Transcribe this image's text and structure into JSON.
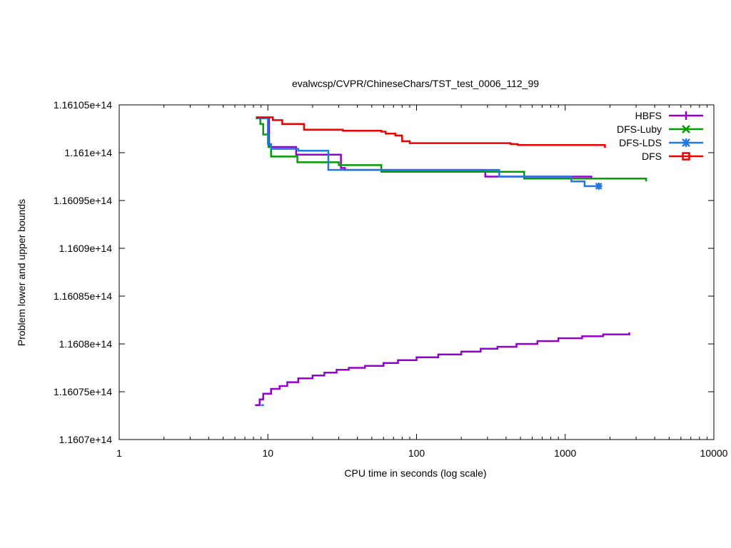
{
  "chart_data": {
    "type": "line",
    "title": "evalwcsp/CVPR/ChineseChars/TST_test_0006_112_99",
    "xlabel": "CPU time in seconds (log scale)",
    "ylabel": "Problem lower and upper bounds",
    "xscale": "log",
    "xlim": [
      1,
      10000
    ],
    "ylim": [
      116070000000000,
      116105000000000
    ],
    "xticks": [
      {
        "value": 1,
        "label": "1"
      },
      {
        "value": 10,
        "label": "10"
      },
      {
        "value": 100,
        "label": "100"
      },
      {
        "value": 1000,
        "label": "1000"
      },
      {
        "value": 10000,
        "label": "10000"
      }
    ],
    "yticks": [
      {
        "value": 116070000000000,
        "label": "1.1607e+14"
      },
      {
        "value": 116075000000000,
        "label": "1.16075e+14"
      },
      {
        "value": 116080000000000,
        "label": "1.1608e+14"
      },
      {
        "value": 116085000000000,
        "label": "1.16085e+14"
      },
      {
        "value": 116090000000000,
        "label": "1.1609e+14"
      },
      {
        "value": 116095000000000,
        "label": "1.16095e+14"
      },
      {
        "value": 116100000000000,
        "label": "1.161e+14"
      },
      {
        "value": 116105000000000,
        "label": "1.16105e+14"
      }
    ],
    "legend_position": "top-right",
    "series": [
      {
        "name": "HBFS",
        "color": "#9400d3",
        "marker": "plus",
        "upper": [
          [
            8.4,
            116103600000000
          ],
          [
            10.2,
            116103600000000
          ],
          [
            10.2,
            116100600000000
          ],
          [
            15.5,
            116100600000000
          ],
          [
            15.5,
            116099800000000
          ],
          [
            31,
            116099800000000
          ],
          [
            31,
            116098400000000
          ],
          [
            33,
            116098400000000
          ],
          [
            33,
            116098200000000
          ],
          [
            290,
            116098200000000
          ],
          [
            290,
            116097500000000
          ],
          [
            1500,
            116097500000000
          ],
          [
            1500,
            116097300000000
          ],
          [
            1600,
            116097300000000
          ]
        ],
        "lower": [
          [
            8.2,
            116073600000000
          ],
          [
            8.8,
            116073600000000
          ],
          [
            8.8,
            116074200000000
          ],
          [
            9.3,
            116074200000000
          ],
          [
            9.3,
            116074800000000
          ],
          [
            10.5,
            116074800000000
          ],
          [
            10.5,
            116075300000000
          ],
          [
            12,
            116075300000000
          ],
          [
            12,
            116075600000000
          ],
          [
            13.5,
            116075600000000
          ],
          [
            13.5,
            116076000000000
          ],
          [
            16,
            116076000000000
          ],
          [
            16,
            116076400000000
          ],
          [
            20,
            116076400000000
          ],
          [
            20,
            116076700000000
          ],
          [
            24,
            116076700000000
          ],
          [
            24,
            116077000000000
          ],
          [
            29,
            116077000000000
          ],
          [
            29,
            116077300000000
          ],
          [
            35,
            116077300000000
          ],
          [
            35,
            116077500000000
          ],
          [
            45,
            116077500000000
          ],
          [
            45,
            116077700000000
          ],
          [
            60,
            116077700000000
          ],
          [
            60,
            116078000000000
          ],
          [
            75,
            116078000000000
          ],
          [
            75,
            116078300000000
          ],
          [
            100,
            116078300000000
          ],
          [
            100,
            116078600000000
          ],
          [
            140,
            116078600000000
          ],
          [
            140,
            116078900000000
          ],
          [
            200,
            116078900000000
          ],
          [
            200,
            116079200000000
          ],
          [
            270,
            116079200000000
          ],
          [
            270,
            116079500000000
          ],
          [
            350,
            116079500000000
          ],
          [
            350,
            116079700000000
          ],
          [
            470,
            116079700000000
          ],
          [
            470,
            116080000000000
          ],
          [
            650,
            116080000000000
          ],
          [
            650,
            116080300000000
          ],
          [
            900,
            116080300000000
          ],
          [
            900,
            116080600000000
          ],
          [
            1300,
            116080600000000
          ],
          [
            1300,
            116080800000000
          ],
          [
            1800,
            116080800000000
          ],
          [
            1800,
            116081000000000
          ],
          [
            2700,
            116081000000000
          ],
          [
            2700,
            116081200000000
          ]
        ]
      },
      {
        "name": "DFS-Luby",
        "color": "#009e00",
        "marker": "x",
        "upper": [
          [
            8.3,
            116103600000000
          ],
          [
            8.9,
            116103600000000
          ],
          [
            8.9,
            116103000000000
          ],
          [
            9.3,
            116103000000000
          ],
          [
            9.3,
            116101900000000
          ],
          [
            10.1,
            116101900000000
          ],
          [
            10.1,
            116100600000000
          ],
          [
            10.5,
            116100600000000
          ],
          [
            10.5,
            116099600000000
          ],
          [
            15.8,
            116099600000000
          ],
          [
            15.8,
            116099000000000
          ],
          [
            30,
            116099000000000
          ],
          [
            30,
            116098700000000
          ],
          [
            58,
            116098700000000
          ],
          [
            58,
            116098000000000
          ],
          [
            530,
            116098000000000
          ],
          [
            530,
            116097300000000
          ],
          [
            3500,
            116097300000000
          ],
          [
            3500,
            116097000000000
          ]
        ]
      },
      {
        "name": "DFS-LDS",
        "color": "#1e78e6",
        "marker": "star",
        "upper": [
          [
            8.5,
            116103600000000
          ],
          [
            10,
            116103600000000
          ],
          [
            10,
            116100900000000
          ],
          [
            10.5,
            116100900000000
          ],
          [
            10.5,
            116100400000000
          ],
          [
            16,
            116100400000000
          ],
          [
            16,
            116100200000000
          ],
          [
            25.5,
            116100200000000
          ],
          [
            25.5,
            116098200000000
          ],
          [
            360,
            116098200000000
          ],
          [
            360,
            116097500000000
          ],
          [
            1100,
            116097500000000
          ],
          [
            1100,
            116097000000000
          ],
          [
            1350,
            116097000000000
          ],
          [
            1350,
            116096500000000
          ],
          [
            1700,
            116096500000000
          ]
        ],
        "lower": [
          [
            9.0,
            116073600000000
          ],
          [
            9.4,
            116073600000000
          ]
        ],
        "end_marker": [
          1680,
          116096500000000
        ]
      },
      {
        "name": "DFS",
        "color": "#ee0000",
        "marker": "square",
        "upper": [
          [
            8.3,
            116103700000000
          ],
          [
            10.8,
            116103700000000
          ],
          [
            10.8,
            116103400000000
          ],
          [
            12.5,
            116103400000000
          ],
          [
            12.5,
            116103000000000
          ],
          [
            17.5,
            116103000000000
          ],
          [
            17.5,
            116102400000000
          ],
          [
            32,
            116102400000000
          ],
          [
            32,
            116102300000000
          ],
          [
            58,
            116102300000000
          ],
          [
            58,
            116102200000000
          ],
          [
            62,
            116102200000000
          ],
          [
            62,
            116102000000000
          ],
          [
            72,
            116102000000000
          ],
          [
            72,
            116101800000000
          ],
          [
            80,
            116101800000000
          ],
          [
            80,
            116101200000000
          ],
          [
            90,
            116101200000000
          ],
          [
            90,
            116101000000000
          ],
          [
            430,
            116101000000000
          ],
          [
            430,
            116100900000000
          ],
          [
            480,
            116100900000000
          ],
          [
            480,
            116100800000000
          ],
          [
            1850,
            116100800000000
          ],
          [
            1850,
            116100500000000
          ]
        ]
      }
    ]
  }
}
